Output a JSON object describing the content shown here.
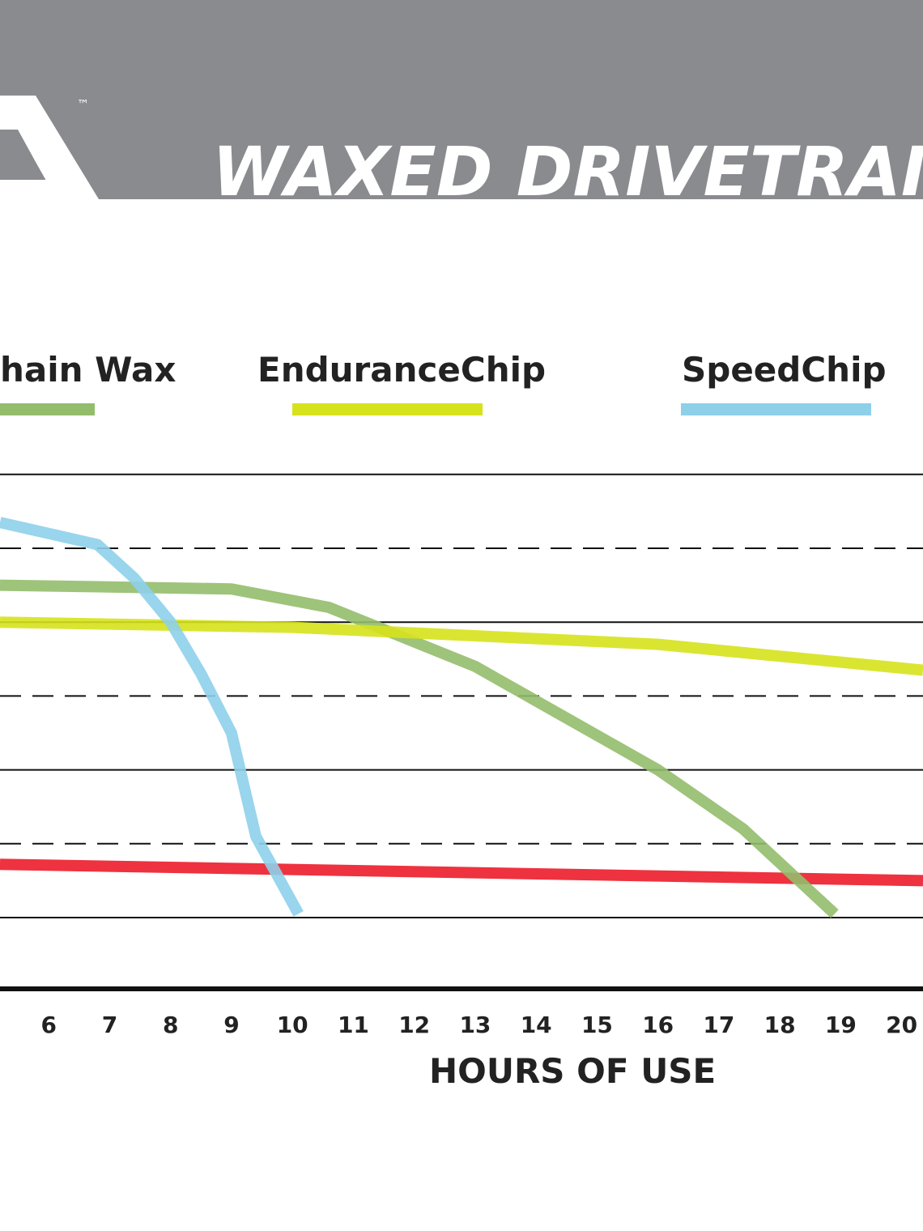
{
  "banner": {
    "title": "WAXED DRIVETRAIN T",
    "trademark": "™",
    "logo": "brand-logo-fragment"
  },
  "colors": {
    "banner_bg": "#8a8b8f",
    "chain_wax": "#93bd6b",
    "endurance_chip": "#d6e21c",
    "speed_chip": "#8ed0ea",
    "red_series": "#ec1c2a",
    "axis": "#111111",
    "grid": "#111111"
  },
  "chart_data": {
    "type": "line",
    "title": "",
    "xlabel": "HOURS OF USE",
    "ylabel": "",
    "x_ticks": [
      6,
      7,
      8,
      9,
      10,
      11,
      12,
      13,
      14,
      15,
      16,
      17,
      18,
      19,
      20
    ],
    "xlim": [
      5.2,
      20.35
    ],
    "y_gridlines": {
      "solid": [
        0,
        2,
        4,
        6
      ],
      "dashed": [
        1,
        3,
        5
      ]
    },
    "ylim": [
      -1,
      6
    ],
    "legend": [
      {
        "name": "hain Wax",
        "color": "#93bd6b"
      },
      {
        "name": "EnduranceChip",
        "color": "#d6e21c"
      },
      {
        "name": "SpeedChip",
        "color": "#8ed0ea"
      }
    ],
    "series": [
      {
        "name": "hain Wax",
        "color": "#93bd6b",
        "points": [
          [
            5.2,
            4.5
          ],
          [
            9.0,
            4.45
          ],
          [
            10.6,
            4.2
          ],
          [
            13.0,
            3.4
          ],
          [
            16.0,
            2.0
          ],
          [
            17.4,
            1.2
          ],
          [
            18.9,
            0.05
          ]
        ]
      },
      {
        "name": "EnduranceChip",
        "color": "#d6e21c",
        "points": [
          [
            5.2,
            4.0
          ],
          [
            10.0,
            3.93
          ],
          [
            16.0,
            3.7
          ],
          [
            20.35,
            3.35
          ]
        ]
      },
      {
        "name": "SpeedChip",
        "color": "#8ed0ea",
        "points": [
          [
            5.2,
            5.35
          ],
          [
            6.8,
            5.05
          ],
          [
            7.4,
            4.6
          ],
          [
            8.0,
            4.0
          ],
          [
            8.5,
            3.3
          ],
          [
            9.0,
            2.5
          ],
          [
            9.4,
            1.1
          ],
          [
            10.1,
            0.05
          ]
        ]
      },
      {
        "name": "",
        "color": "#ec1c2a",
        "points": [
          [
            5.2,
            0.72
          ],
          [
            20.35,
            0.5
          ]
        ]
      }
    ]
  }
}
